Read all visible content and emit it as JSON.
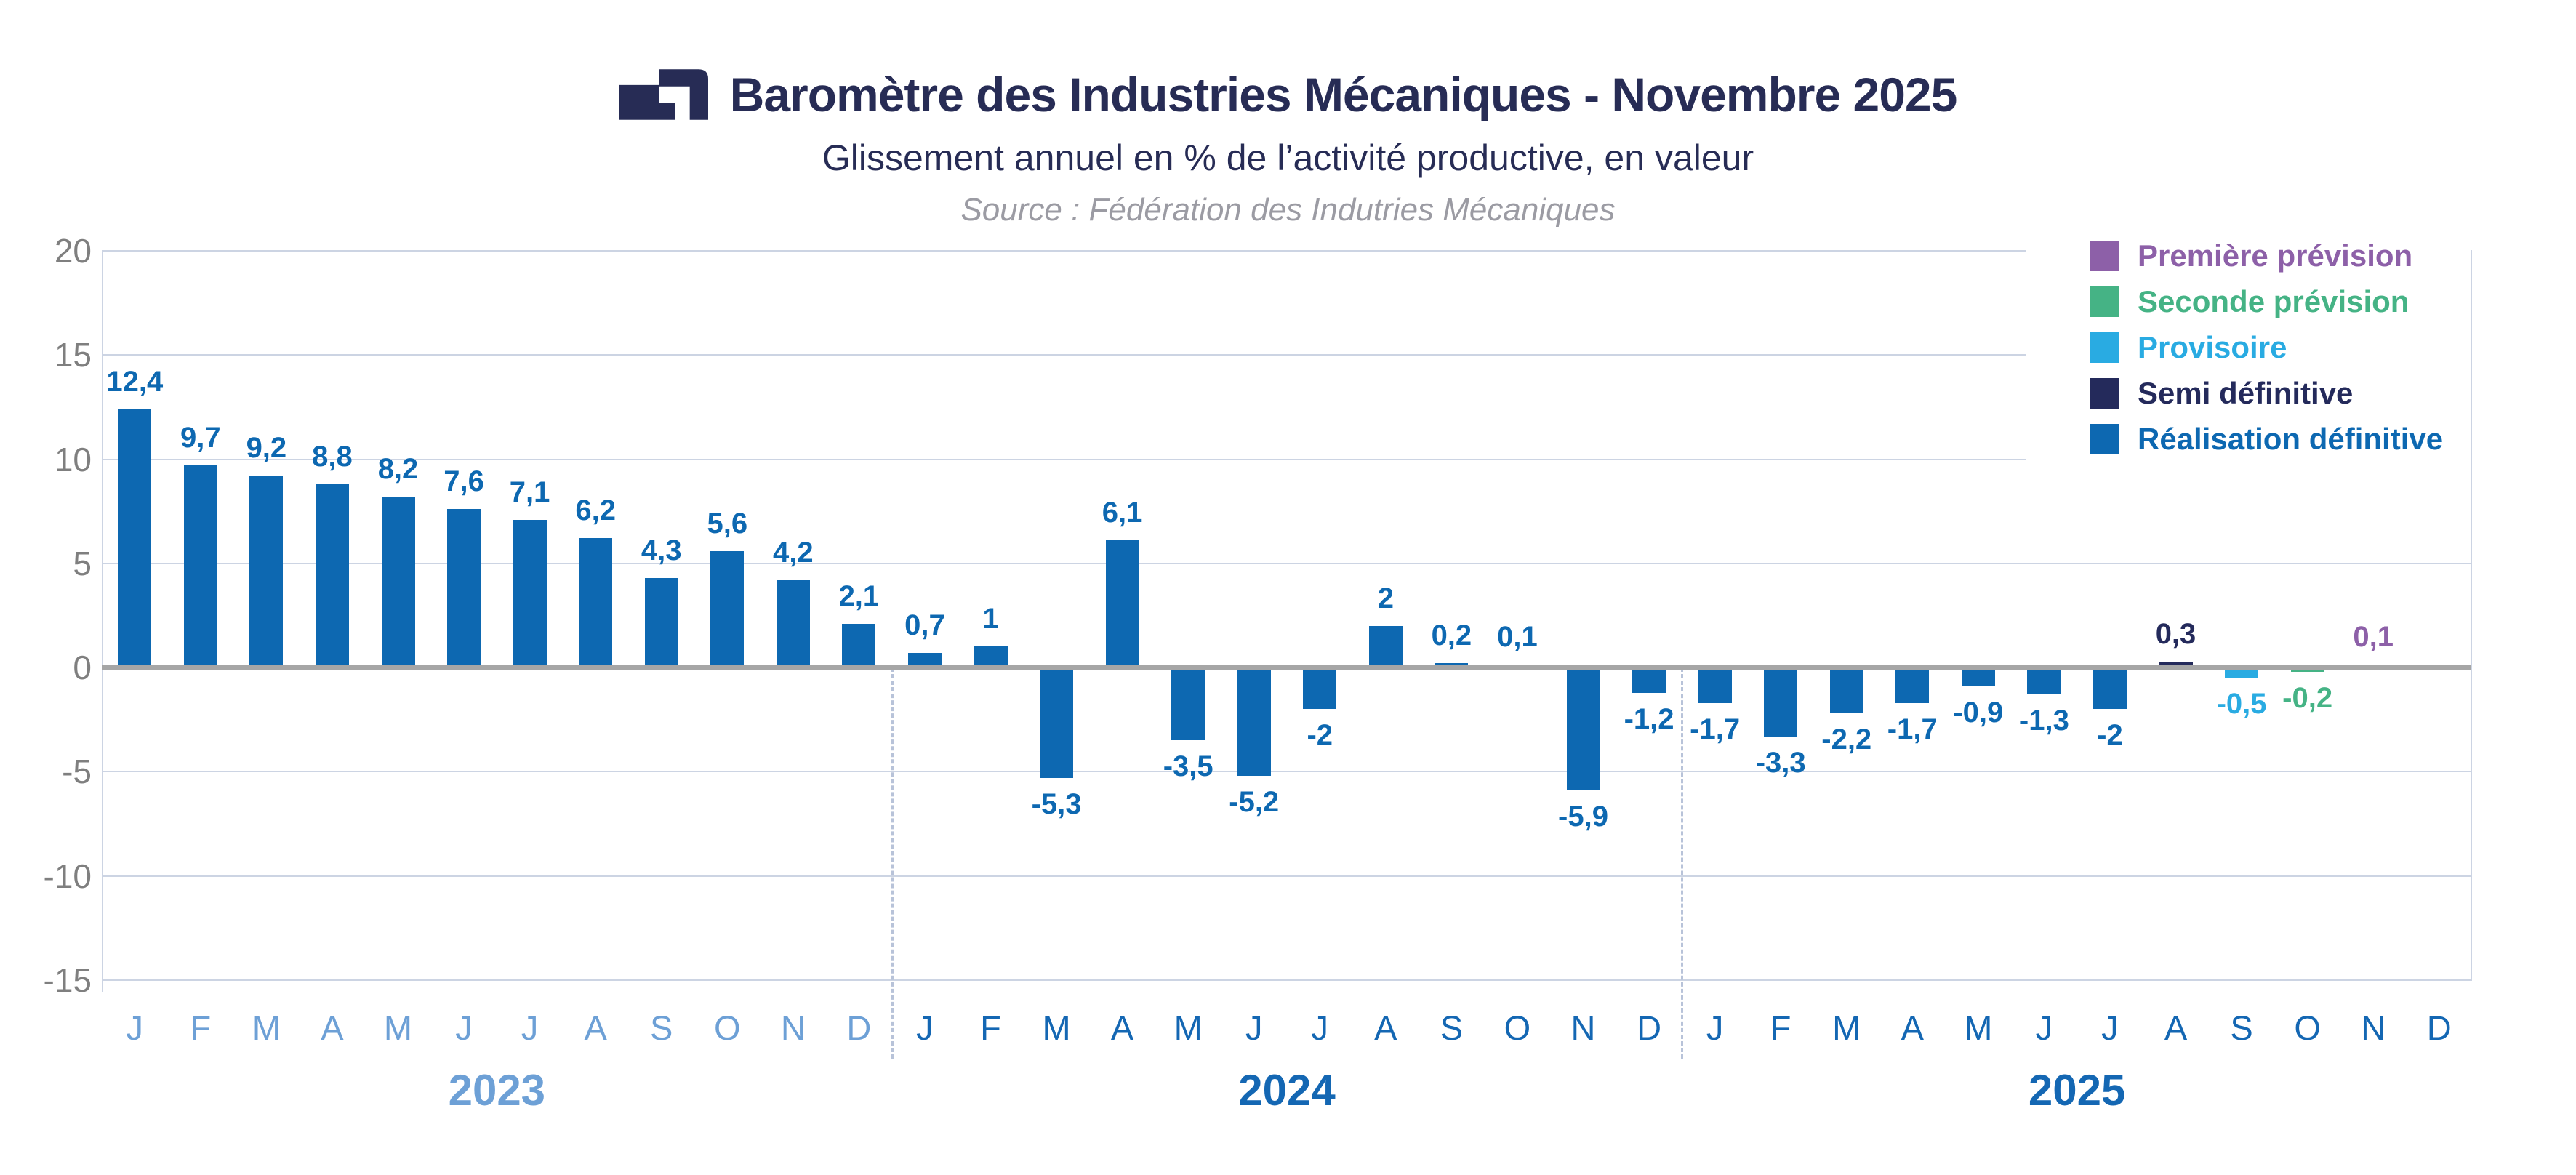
{
  "header": {
    "title": "Baromètre des Industries Mécaniques - Novembre 2025",
    "subtitle": "Glissement annuel en % de l’activité productive, en valeur",
    "source": "Source : Fédération des Indutries Mécaniques"
  },
  "legend": {
    "items": [
      {
        "key": "premiere",
        "label": "Première prévision",
        "color": "#8d60a8"
      },
      {
        "key": "seconde",
        "label": "Seconde prévision",
        "color": "#45b385"
      },
      {
        "key": "provisoire",
        "label": "Provisoire",
        "color": "#29abe2"
      },
      {
        "key": "semi",
        "label": "Semi définitive",
        "color": "#242a5b"
      },
      {
        "key": "realisation",
        "label": "Réalisation définitive",
        "color": "#0d68b1"
      }
    ]
  },
  "chart_data": {
    "type": "bar",
    "title": "Baromètre des Industries Mécaniques - Novembre 2025",
    "subtitle": "Glissement annuel en % de l’activité productive, en valeur",
    "source": "Source : Fédération des Indutries Mécaniques",
    "ylim": [
      -15,
      20
    ],
    "yticks": [
      20,
      15,
      10,
      5,
      0,
      -5,
      -10,
      -15
    ],
    "grid": true,
    "legend_position": "top-right",
    "zero_line_color": "#a6a6a6",
    "gridline_color": "#ccd4e3",
    "separator_color": "#b8c3d9",
    "month_letters": [
      "J",
      "F",
      "M",
      "A",
      "M",
      "J",
      "J",
      "A",
      "S",
      "O",
      "N",
      "D"
    ],
    "years": [
      {
        "label": "2023",
        "color": "#6da0d6"
      },
      {
        "label": "2024",
        "color": "#1467b3"
      },
      {
        "label": "2025",
        "color": "#1467b3"
      }
    ],
    "series_colors": {
      "premiere": "#8d60a8",
      "seconde": "#45b385",
      "provisoire": "#29abe2",
      "semi": "#242a5b",
      "realisation": "#0d68b1"
    },
    "points": [
      {
        "year": "2023",
        "month": "J",
        "value": 12.4,
        "label": "12,4",
        "series": "realisation"
      },
      {
        "year": "2023",
        "month": "F",
        "value": 9.7,
        "label": "9,7",
        "series": "realisation"
      },
      {
        "year": "2023",
        "month": "M",
        "value": 9.2,
        "label": "9,2",
        "series": "realisation"
      },
      {
        "year": "2023",
        "month": "A",
        "value": 8.8,
        "label": "8,8",
        "series": "realisation"
      },
      {
        "year": "2023",
        "month": "M",
        "value": 8.2,
        "label": "8,2",
        "series": "realisation"
      },
      {
        "year": "2023",
        "month": "J",
        "value": 7.6,
        "label": "7,6",
        "series": "realisation"
      },
      {
        "year": "2023",
        "month": "J",
        "value": 7.1,
        "label": "7,1",
        "series": "realisation"
      },
      {
        "year": "2023",
        "month": "A",
        "value": 6.2,
        "label": "6,2",
        "series": "realisation"
      },
      {
        "year": "2023",
        "month": "S",
        "value": 4.3,
        "label": "4,3",
        "series": "realisation"
      },
      {
        "year": "2023",
        "month": "O",
        "value": 5.6,
        "label": "5,6",
        "series": "realisation"
      },
      {
        "year": "2023",
        "month": "N",
        "value": 4.2,
        "label": "4,2",
        "series": "realisation"
      },
      {
        "year": "2023",
        "month": "D",
        "value": 2.1,
        "label": "2,1",
        "series": "realisation"
      },
      {
        "year": "2024",
        "month": "J",
        "value": 0.7,
        "label": "0,7",
        "series": "realisation"
      },
      {
        "year": "2024",
        "month": "F",
        "value": 1,
        "label": "1",
        "series": "realisation"
      },
      {
        "year": "2024",
        "month": "M",
        "value": -5.3,
        "label": "-5,3",
        "series": "realisation"
      },
      {
        "year": "2024",
        "month": "A",
        "value": 6.1,
        "label": "6,1",
        "series": "realisation"
      },
      {
        "year": "2024",
        "month": "M",
        "value": -3.5,
        "label": "-3,5",
        "series": "realisation"
      },
      {
        "year": "2024",
        "month": "J",
        "value": -5.2,
        "label": "-5,2",
        "series": "realisation"
      },
      {
        "year": "2024",
        "month": "J",
        "value": -2,
        "label": "-2",
        "series": "realisation"
      },
      {
        "year": "2024",
        "month": "A",
        "value": 2,
        "label": "2",
        "series": "realisation"
      },
      {
        "year": "2024",
        "month": "S",
        "value": 0.2,
        "label": "0,2",
        "series": "realisation"
      },
      {
        "year": "2024",
        "month": "O",
        "value": 0.1,
        "label": "0,1",
        "series": "realisation"
      },
      {
        "year": "2024",
        "month": "N",
        "value": -5.9,
        "label": "-5,9",
        "series": "realisation"
      },
      {
        "year": "2024",
        "month": "D",
        "value": -1.2,
        "label": "-1,2",
        "series": "realisation"
      },
      {
        "year": "2025",
        "month": "J",
        "value": -1.7,
        "label": "-1,7",
        "series": "realisation"
      },
      {
        "year": "2025",
        "month": "F",
        "value": -3.3,
        "label": "-3,3",
        "series": "realisation"
      },
      {
        "year": "2025",
        "month": "M",
        "value": -2.2,
        "label": "-2,2",
        "series": "realisation"
      },
      {
        "year": "2025",
        "month": "A",
        "value": -1.7,
        "label": "-1,7",
        "series": "realisation"
      },
      {
        "year": "2025",
        "month": "M",
        "value": -0.9,
        "label": "-0,9",
        "series": "realisation"
      },
      {
        "year": "2025",
        "month": "J",
        "value": -1.3,
        "label": "-1,3",
        "series": "realisation"
      },
      {
        "year": "2025",
        "month": "J",
        "value": -2,
        "label": "-2",
        "series": "realisation"
      },
      {
        "year": "2025",
        "month": "A",
        "value": 0.3,
        "label": "0,3",
        "series": "semi"
      },
      {
        "year": "2025",
        "month": "S",
        "value": -0.5,
        "label": "-0,5",
        "series": "provisoire"
      },
      {
        "year": "2025",
        "month": "O",
        "value": -0.2,
        "label": "-0,2",
        "series": "seconde"
      },
      {
        "year": "2025",
        "month": "N",
        "value": 0.1,
        "label": "0,1",
        "series": "premiere"
      },
      {
        "year": "2025",
        "month": "D",
        "value": null,
        "label": "",
        "series": null
      }
    ]
  }
}
